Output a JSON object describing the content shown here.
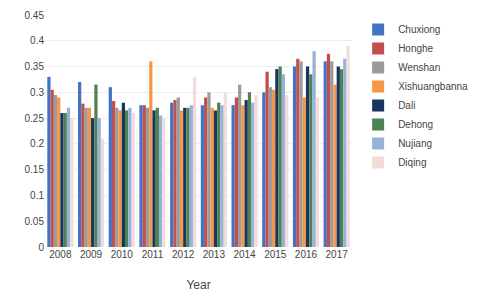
{
  "chart_data": {
    "type": "bar",
    "xlabel": "Year",
    "categories": [
      "2008",
      "2009",
      "2010",
      "2011",
      "2012",
      "2013",
      "2014",
      "2015",
      "2016",
      "2017"
    ],
    "series": [
      {
        "name": "Chuxiong",
        "color": "#4472C4",
        "values": [
          0.33,
          0.32,
          0.31,
          0.275,
          0.28,
          0.275,
          0.275,
          0.3,
          0.35,
          0.36
        ]
      },
      {
        "name": "Honghe",
        "color": "#C0504D",
        "values": [
          0.305,
          0.278,
          0.283,
          0.275,
          0.285,
          0.29,
          0.29,
          0.34,
          0.365,
          0.375
        ]
      },
      {
        "name": "Wenshan",
        "color": "#9B9B9B",
        "values": [
          0.295,
          0.27,
          0.27,
          0.27,
          0.29,
          0.3,
          0.315,
          0.31,
          0.36,
          0.36
        ]
      },
      {
        "name": "Xishuangbanna",
        "color": "#F79646",
        "values": [
          0.29,
          0.27,
          0.265,
          0.36,
          0.265,
          0.27,
          0.275,
          0.305,
          0.29,
          0.315
        ]
      },
      {
        "name": "Dali",
        "color": "#17375E",
        "values": [
          0.26,
          0.25,
          0.28,
          0.265,
          0.27,
          0.265,
          0.285,
          0.345,
          0.35,
          0.35
        ]
      },
      {
        "name": "Dehong",
        "color": "#4F8056",
        "values": [
          0.26,
          0.315,
          0.265,
          0.27,
          0.27,
          0.28,
          0.3,
          0.35,
          0.335,
          0.345
        ]
      },
      {
        "name": "Nujiang",
        "color": "#95B3D7",
        "values": [
          0.27,
          0.25,
          0.27,
          0.255,
          0.275,
          0.275,
          0.28,
          0.335,
          0.38,
          0.365
        ]
      },
      {
        "name": "Diqing",
        "color": "#F2DCDB",
        "values": [
          0.25,
          0.21,
          0.26,
          0.25,
          0.33,
          0.3,
          0.295,
          0.295,
          0.29,
          0.39
        ]
      }
    ],
    "ylim": [
      0,
      0.45
    ],
    "yticks": [
      0,
      0.05,
      0.1,
      0.15,
      0.2,
      0.25,
      0.3,
      0.35,
      0.4,
      0.45
    ],
    "grid": true,
    "legend": "right"
  }
}
